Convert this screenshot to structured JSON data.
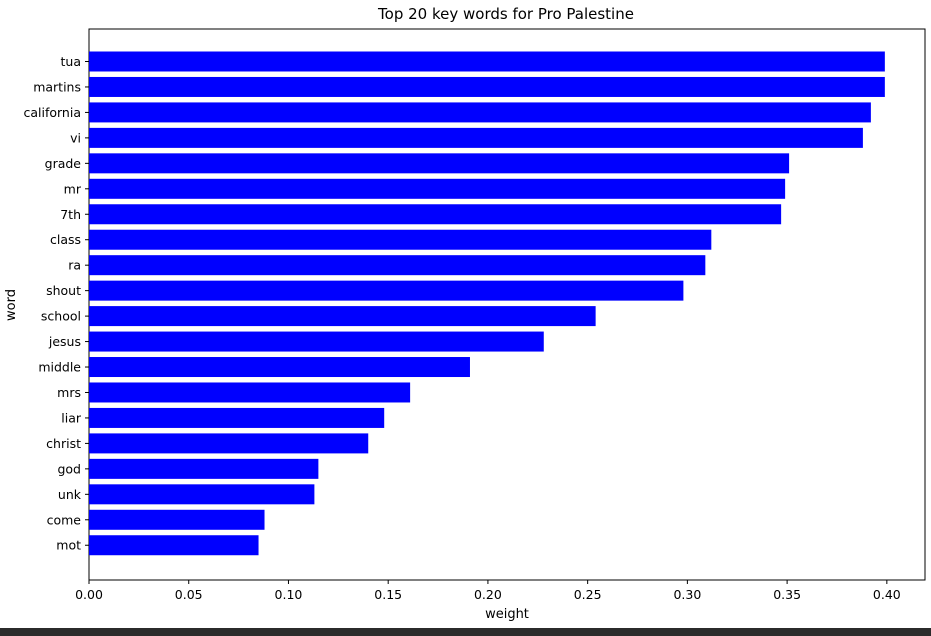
{
  "chart_data": {
    "type": "bar",
    "orientation": "horizontal",
    "title": "Top 20 key words for Pro Palestine",
    "xlabel": "weight",
    "ylabel": "word",
    "xlim": [
      0.0,
      0.42
    ],
    "xticks": [
      "0.00",
      "0.05",
      "0.10",
      "0.15",
      "0.20",
      "0.25",
      "0.30",
      "0.35",
      "0.40"
    ],
    "categories": [
      "tua",
      "martins",
      "california",
      "vi",
      "grade",
      "mr",
      "7th",
      "class",
      "ra",
      "shout",
      "school",
      "jesus",
      "middle",
      "mrs",
      "liar",
      "christ",
      "god",
      "unk",
      "come",
      "mot"
    ],
    "values": [
      0.399,
      0.399,
      0.392,
      0.388,
      0.351,
      0.349,
      0.347,
      0.312,
      0.309,
      0.298,
      0.254,
      0.228,
      0.191,
      0.161,
      0.148,
      0.14,
      0.115,
      0.113,
      0.088,
      0.085
    ],
    "bar_color": "#0000ff",
    "grid": false,
    "legend": "none"
  }
}
